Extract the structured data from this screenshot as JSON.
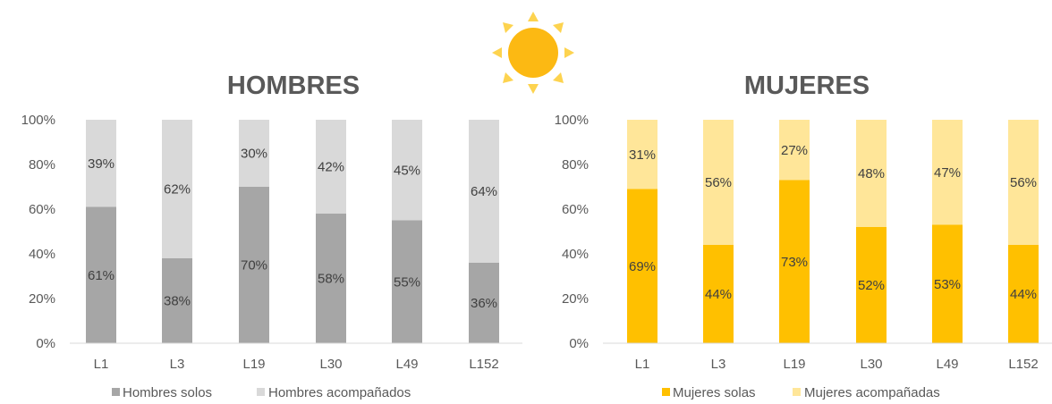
{
  "chart_data": [
    {
      "type": "bar",
      "stacked": true,
      "title": "HOMBRES",
      "categories": [
        "L1",
        "L3",
        "L19",
        "L30",
        "L49",
        "L152"
      ],
      "series": [
        {
          "name": "Hombres solos",
          "values": [
            61,
            38,
            70,
            58,
            55,
            36
          ],
          "color": "#a6a6a6"
        },
        {
          "name": "Hombres acompañados",
          "values": [
            39,
            62,
            30,
            42,
            45,
            64
          ],
          "color": "#d9d9d9"
        }
      ],
      "data_labels": [
        [
          "61%",
          "38%",
          "70%",
          "58%",
          "55%",
          "36%"
        ],
        [
          "39%",
          "62%",
          "30%",
          "42%",
          "45%",
          "64%"
        ]
      ],
      "yticks": [
        "0%",
        "20%",
        "40%",
        "60%",
        "80%",
        "100%"
      ],
      "ylim": [
        0,
        100
      ],
      "grid": false,
      "legend": "bottom"
    },
    {
      "type": "bar",
      "stacked": true,
      "title": "MUJERES",
      "categories": [
        "L1",
        "L3",
        "L19",
        "L30",
        "L49",
        "L152"
      ],
      "series": [
        {
          "name": "Mujeres solas",
          "values": [
            69,
            44,
            73,
            52,
            53,
            44
          ],
          "color": "#ffc000"
        },
        {
          "name": "Mujeres acompañadas",
          "values": [
            31,
            56,
            27,
            48,
            47,
            56
          ],
          "color": "#ffe699"
        }
      ],
      "data_labels": [
        [
          "69%",
          "44%",
          "73%",
          "52%",
          "53%",
          "44%"
        ],
        [
          "31%",
          "56%",
          "27%",
          "48%",
          "47%",
          "56%"
        ]
      ],
      "yticks": [
        "0%",
        "20%",
        "40%",
        "60%",
        "80%",
        "100%"
      ],
      "ylim": [
        0,
        100
      ],
      "grid": false,
      "legend": "bottom"
    }
  ],
  "decoration": {
    "icon": "sun-icon",
    "core_color": "#fcb913",
    "ray_color": "#fdd34f"
  },
  "colors": {
    "text": "#595959",
    "title": "#595959",
    "axis": "#d9d9d9"
  }
}
